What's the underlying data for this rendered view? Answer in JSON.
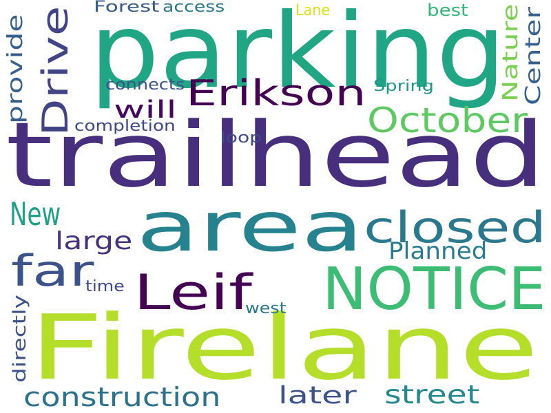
{
  "words": [
    {
      "text": "parking",
      "color": "#21a685"
    },
    {
      "text": "trailhead",
      "color": "#472f7d"
    },
    {
      "text": "Firelane",
      "color": "#b5de2b"
    },
    {
      "text": "area",
      "color": "#26828e"
    },
    {
      "text": "NOTICE",
      "color": "#3dbc74"
    },
    {
      "text": "closed",
      "color": "#2a788e"
    },
    {
      "text": "Leif",
      "color": "#440154"
    },
    {
      "text": "Erikson",
      "color": "#440154"
    },
    {
      "text": "October",
      "color": "#5ec962"
    },
    {
      "text": "Drive",
      "color": "#414487"
    },
    {
      "text": "far",
      "color": "#3b528b"
    },
    {
      "text": "New",
      "color": "#1fa088"
    },
    {
      "text": "Nature",
      "color": "#7ad151"
    },
    {
      "text": "Center",
      "color": "#355f8d"
    },
    {
      "text": "construction",
      "color": "#2c728e"
    },
    {
      "text": "street",
      "color": "#23898e"
    },
    {
      "text": "later",
      "color": "#3b528b"
    },
    {
      "text": "provide",
      "color": "#355f8d"
    },
    {
      "text": "large",
      "color": "#46327e"
    },
    {
      "text": "will",
      "color": "#46085c"
    },
    {
      "text": "Planned",
      "color": "#287c8e"
    },
    {
      "text": "directly",
      "color": "#3b528b"
    },
    {
      "text": "completion",
      "color": "#3e4989"
    },
    {
      "text": "connects",
      "color": "#3b528b"
    },
    {
      "text": "access",
      "color": "#2a788e"
    },
    {
      "text": "Forest",
      "color": "#38598c"
    },
    {
      "text": "Spring",
      "color": "#1f968b"
    },
    {
      "text": "loop",
      "color": "#3e4989"
    },
    {
      "text": "west",
      "color": "#2a788e"
    },
    {
      "text": "time",
      "color": "#3e4a89"
    },
    {
      "text": "best",
      "color": "#35b779"
    },
    {
      "text": "Lane",
      "color": "#dde318"
    }
  ]
}
